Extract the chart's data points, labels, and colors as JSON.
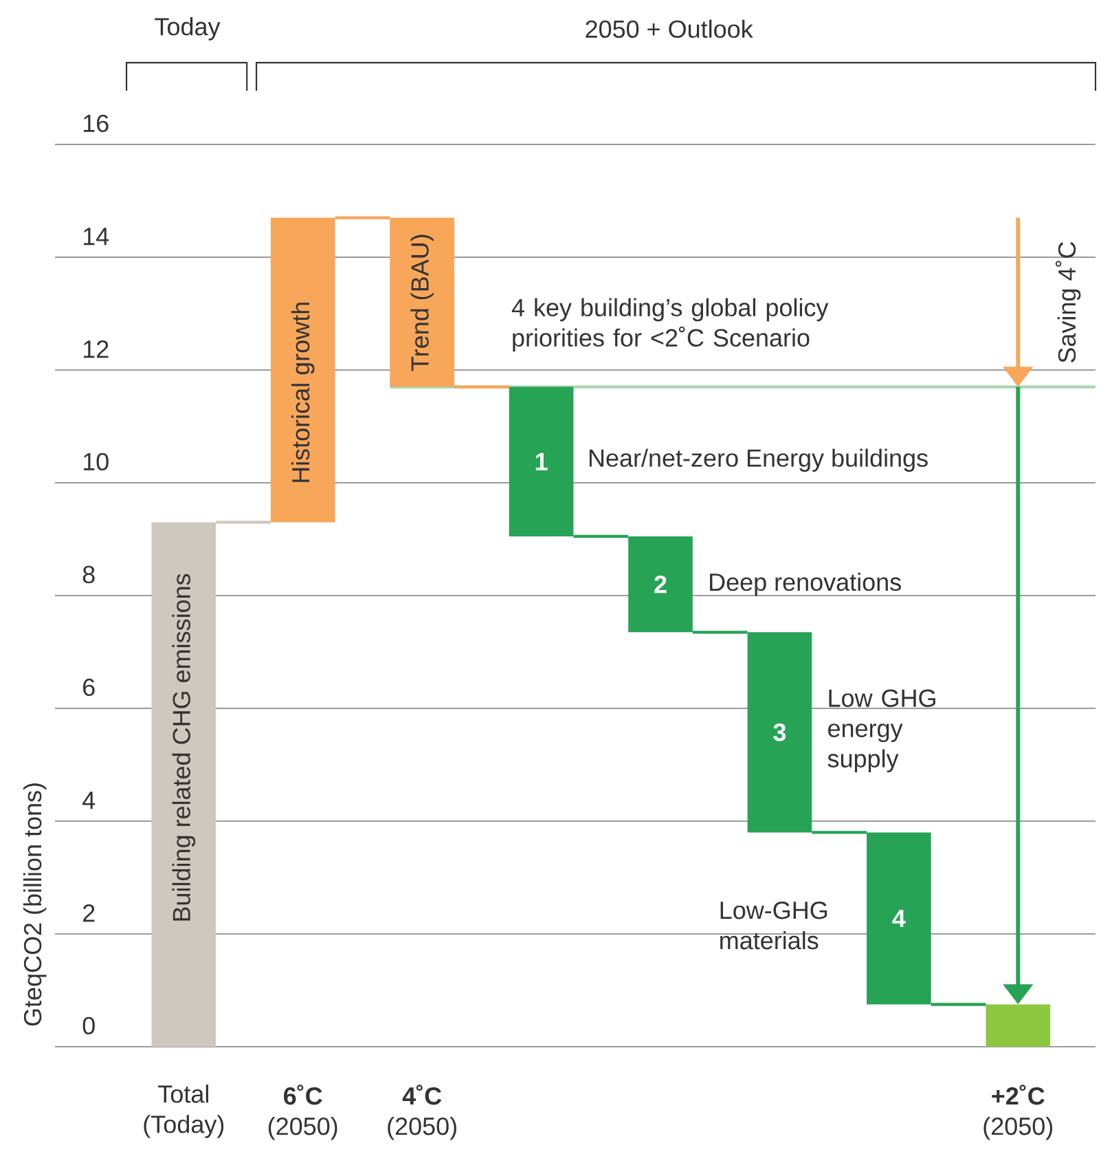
{
  "chart_data": {
    "type": "bar",
    "ylabel": "GteqCO2 (billion tons)",
    "categories": [
      "Total (Today)",
      "**6˚C** (2050)",
      "**4˚C** (2050)",
      null,
      null,
      null,
      null,
      "**+2˚C** (2050)"
    ],
    "base": [
      0,
      9.3,
      14.7,
      11.7,
      9.05,
      7.35,
      3.8,
      0
    ],
    "values": [
      9.3,
      5.4,
      -3.0,
      -2.65,
      -1.7,
      -3.55,
      -3.05,
      0.75
    ],
    "colors": [
      "#cfc8be",
      "#f7a65a",
      "#f7a65a",
      "#27a356",
      "#27a356",
      "#27a356",
      "#27a356",
      "#8dc63f"
    ],
    "ylim": [
      0,
      16
    ],
    "yticks": [
      0,
      2,
      4,
      6,
      8,
      10,
      12,
      14,
      16
    ],
    "grid": "y",
    "ref_lines": [
      {
        "axis": "y",
        "value": 11.7,
        "color": "#a8d5b0"
      }
    ],
    "annotations": [
      "Today",
      "2050 + Outlook",
      "Building related CHG emissions",
      "Historical growth",
      "Trend (BAU)",
      "4 key building’s global policy priorities for <2˚C Scenario",
      "1",
      "2",
      "3",
      "4",
      "Near/net-zero Energy buildings",
      "Deep renovations",
      "Low GHG energy supply",
      "Low-GHG materials",
      "Saving 4˚C"
    ]
  }
}
